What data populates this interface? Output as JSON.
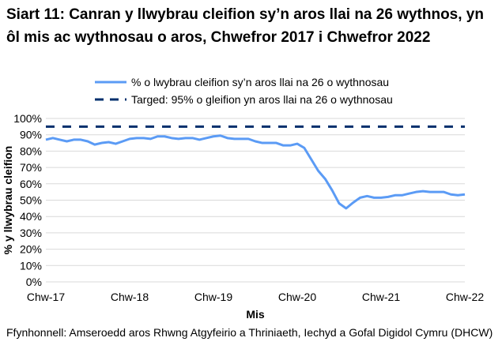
{
  "chart_data": {
    "type": "line",
    "title": "Siart 11: Canran y llwybrau cleifion sy’n aros llai na 26 wythnos, yn ôl mis ac wythnosau o aros, Chwefror 2017 i Chwefror 2022",
    "xlabel": "Mis",
    "ylabel": "% y llwybrau cleifion",
    "ylim": [
      0,
      100
    ],
    "yticks": [
      "0%",
      "10%",
      "20%",
      "30%",
      "40%",
      "50%",
      "60%",
      "70%",
      "80%",
      "90%",
      "100%"
    ],
    "xticks": [
      "Chw-17",
      "Chw-18",
      "Chw-19",
      "Chw-20",
      "Chw-21",
      "Chw-22"
    ],
    "grid": true,
    "legend_placement": "top",
    "series": [
      {
        "name": "% o lwybrau cleifion sy’n aros llai na 26 o wythnosau",
        "color": "#5b9bf5",
        "style": "solid",
        "values": [
          87,
          88,
          87,
          86,
          87,
          87,
          86,
          84,
          85,
          85.5,
          84.5,
          86,
          87.5,
          88,
          88,
          87.5,
          89,
          89,
          88,
          87.5,
          88,
          88,
          87,
          88,
          89,
          89.5,
          88,
          87.5,
          87.5,
          87.5,
          86,
          85,
          85,
          85,
          83.5,
          83.5,
          84.5,
          82,
          75,
          68,
          63,
          56,
          48,
          45,
          48.5,
          51.5,
          52.5,
          51.5,
          51.5,
          52,
          53,
          53,
          54,
          55,
          55.5,
          55,
          55,
          55,
          53.5,
          53,
          53.5
        ]
      },
      {
        "name": "Targed: 95% o gleifion yn aros llai na 26 o wythnosau",
        "color": "#002f6c",
        "style": "dashed",
        "values": [
          95
        ]
      }
    ]
  },
  "source": "Ffynhonnell: Amseroedd aros Rhwng Atgyfeirio a Thriniaeth, Iechyd a Gofal Digidol Cymru (DHCW)"
}
